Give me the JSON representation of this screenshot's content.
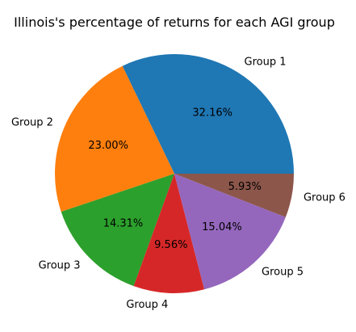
{
  "chart_data": {
    "type": "pie",
    "title": "Illinois's percentage of returns for each AGI group",
    "categories": [
      "Group 1",
      "Group 2",
      "Group 3",
      "Group 4",
      "Group 5",
      "Group 6"
    ],
    "values": [
      32.16,
      23.0,
      14.31,
      9.56,
      15.04,
      5.93
    ],
    "percent_labels": [
      "32.16%",
      "23.00%",
      "14.31%",
      "9.56%",
      "15.04%",
      "5.93%"
    ],
    "colors": [
      "#1f77b4",
      "#ff7f0e",
      "#2ca02c",
      "#d62728",
      "#9467bd",
      "#8c564b"
    ],
    "start_angle_deg": 0,
    "direction": "counterclockwise",
    "legend": "none"
  }
}
